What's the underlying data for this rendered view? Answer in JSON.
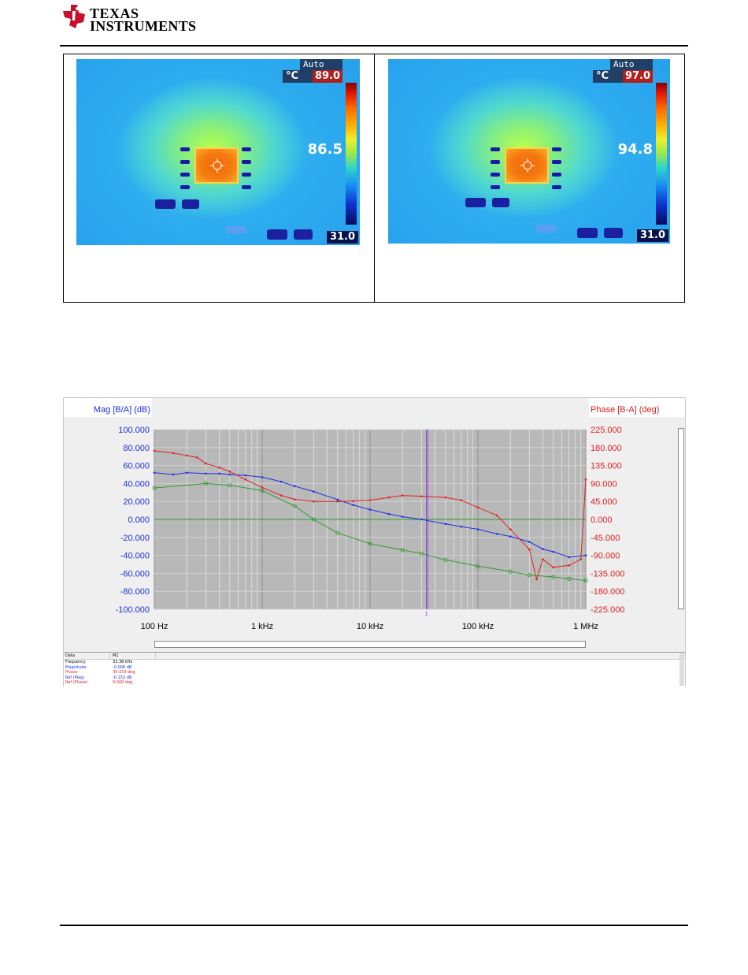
{
  "brand": {
    "line1": "TEXAS",
    "line2": "INSTRUMENTS",
    "colors": {
      "logo_red": "#c8102e"
    }
  },
  "thermal": {
    "images": [
      {
        "mode": "Auto",
        "unit": "°C",
        "max": "89.0",
        "spot": "86.5",
        "min": "31.0"
      },
      {
        "mode": "Auto",
        "unit": "°C",
        "max": "97.0",
        "spot": "94.8",
        "min": "31.0"
      }
    ]
  },
  "analyzer": {
    "left_axis_title": "Mag [B/A] (dB)",
    "right_axis_title": "Phase [B-A] (deg)",
    "cursor_label": "1",
    "left_ticks": [
      "100.000",
      "80.000",
      "60.000",
      "40.000",
      "20.000",
      "0.000",
      "-20.000",
      "-40.000",
      "-60.000",
      "-80.000",
      "-100.000"
    ],
    "right_ticks": [
      "225.000",
      "180.000",
      "135.000",
      "90.000",
      "45.000",
      "0.000",
      "-45.000",
      "-90.000",
      "-135.000",
      "-180.000",
      "-225.000"
    ],
    "x_ticks": [
      "100 Hz",
      "1 kHz",
      "10 kHz",
      "100 kHz",
      "1 MHz"
    ],
    "colors": {
      "magnitude": "#1c2fe0",
      "phase": "#e02020",
      "reference": "#2e9a2e",
      "cursor": "#8a2be2",
      "plot_bg": "#b8b8b8"
    },
    "data_table": {
      "headers": [
        "Data",
        "M1"
      ],
      "rows": [
        {
          "key": "Frequency",
          "value": "33.38 kHz"
        },
        {
          "key": "Magnitude",
          "value": "-0.008 dB"
        },
        {
          "key": "Phase",
          "value": "39.153 deg"
        },
        {
          "key": "Ref (Mag)",
          "value": "-0.153 dB"
        },
        {
          "key": "Ref (Phase)",
          "value": "0.000 deg"
        }
      ]
    }
  },
  "chart_data": {
    "type": "line",
    "title": "",
    "xlabel": "",
    "x_scale": "log",
    "xlim": [
      100,
      1000000
    ],
    "ylabel": "Mag [B/A] (dB)",
    "ylim": [
      -100,
      100
    ],
    "y2label": "Phase [B-A] (deg)",
    "y2lim": [
      -225,
      225
    ],
    "grid": true,
    "series": [
      {
        "axis": "left",
        "x": [
          100,
          150,
          200,
          300,
          400,
          500,
          700,
          1000,
          1500,
          2000,
          3000,
          5000,
          7000,
          10000,
          15000,
          20000,
          30000,
          50000,
          70000,
          100000,
          150000,
          200000,
          300000,
          400000,
          500000,
          700000,
          1000000
        ],
        "y": [
          52,
          50,
          52,
          51,
          51,
          50,
          49,
          47,
          42,
          37,
          31,
          22,
          16,
          11,
          6,
          3,
          0,
          -5,
          -8,
          -11,
          -16,
          -19,
          -25,
          -33,
          -36,
          -42,
          -40
        ]
      },
      {
        "axis": "right",
        "x": [
          100,
          150,
          200,
          250,
          300,
          400,
          500,
          700,
          1000,
          1500,
          2000,
          3000,
          5000,
          7000,
          10000,
          15000,
          20000,
          30000,
          50000,
          70000,
          100000,
          150000,
          200000,
          300000,
          350000,
          400000,
          500000,
          700000,
          900000,
          1000000
        ],
        "y": [
          172,
          166,
          160,
          155,
          140,
          130,
          120,
          100,
          80,
          60,
          50,
          45,
          45,
          46,
          48,
          55,
          60,
          58,
          55,
          48,
          30,
          10,
          -25,
          -75,
          -150,
          -100,
          -120,
          -115,
          -100,
          100
        ]
      },
      {
        "axis": "left",
        "x": [
          100,
          300,
          500,
          1000,
          2000,
          3000,
          5000,
          10000,
          20000,
          30000,
          50000,
          100000,
          200000,
          300000,
          500000,
          700000,
          1000000
        ],
        "y": [
          35,
          40,
          38,
          32,
          15,
          0,
          -15,
          -27,
          -34,
          -38,
          -45,
          -52,
          -58,
          -62,
          -64,
          -66,
          -68
        ]
      }
    ]
  }
}
